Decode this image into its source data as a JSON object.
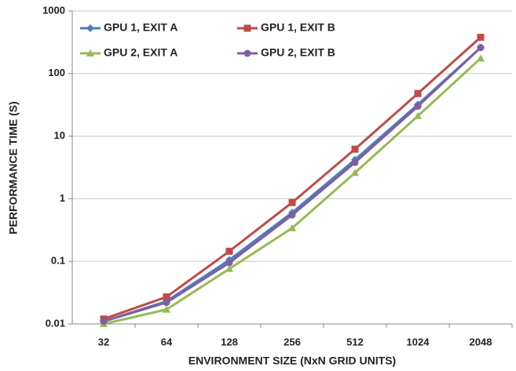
{
  "chart_data": {
    "type": "line",
    "x_label": "ENVIRONMENT SIZE (NxN GRID UNITS)",
    "y_label": "PERFORMANCE TIME (S)",
    "categories": [
      "32",
      "64",
      "128",
      "256",
      "512",
      "1024",
      "2048"
    ],
    "log_scale": true,
    "grid": true,
    "legend": "top-left",
    "ylim": [
      0.01,
      1000
    ],
    "yticks": [
      0.01,
      0.1,
      1,
      10,
      100,
      1000
    ],
    "series": [
      {
        "name": "GPU 1, EXIT A",
        "color": "#4a7ebb",
        "marker": "diamond",
        "values": [
          0.011,
          0.023,
          0.105,
          0.6,
          4.2,
          32,
          260
        ]
      },
      {
        "name": "GPU 1, EXIT B",
        "color": "#be4b48",
        "marker": "square",
        "values": [
          0.012,
          0.027,
          0.145,
          0.87,
          6.2,
          48,
          380
        ]
      },
      {
        "name": "GPU 2, EXIT A",
        "color": "#98b954",
        "marker": "triangle",
        "values": [
          0.01,
          0.017,
          0.076,
          0.34,
          2.6,
          21,
          175
        ]
      },
      {
        "name": "GPU 2, EXIT B",
        "color": "#7d60a0",
        "marker": "circle",
        "values": [
          0.011,
          0.022,
          0.095,
          0.55,
          3.8,
          30,
          260
        ]
      }
    ]
  }
}
